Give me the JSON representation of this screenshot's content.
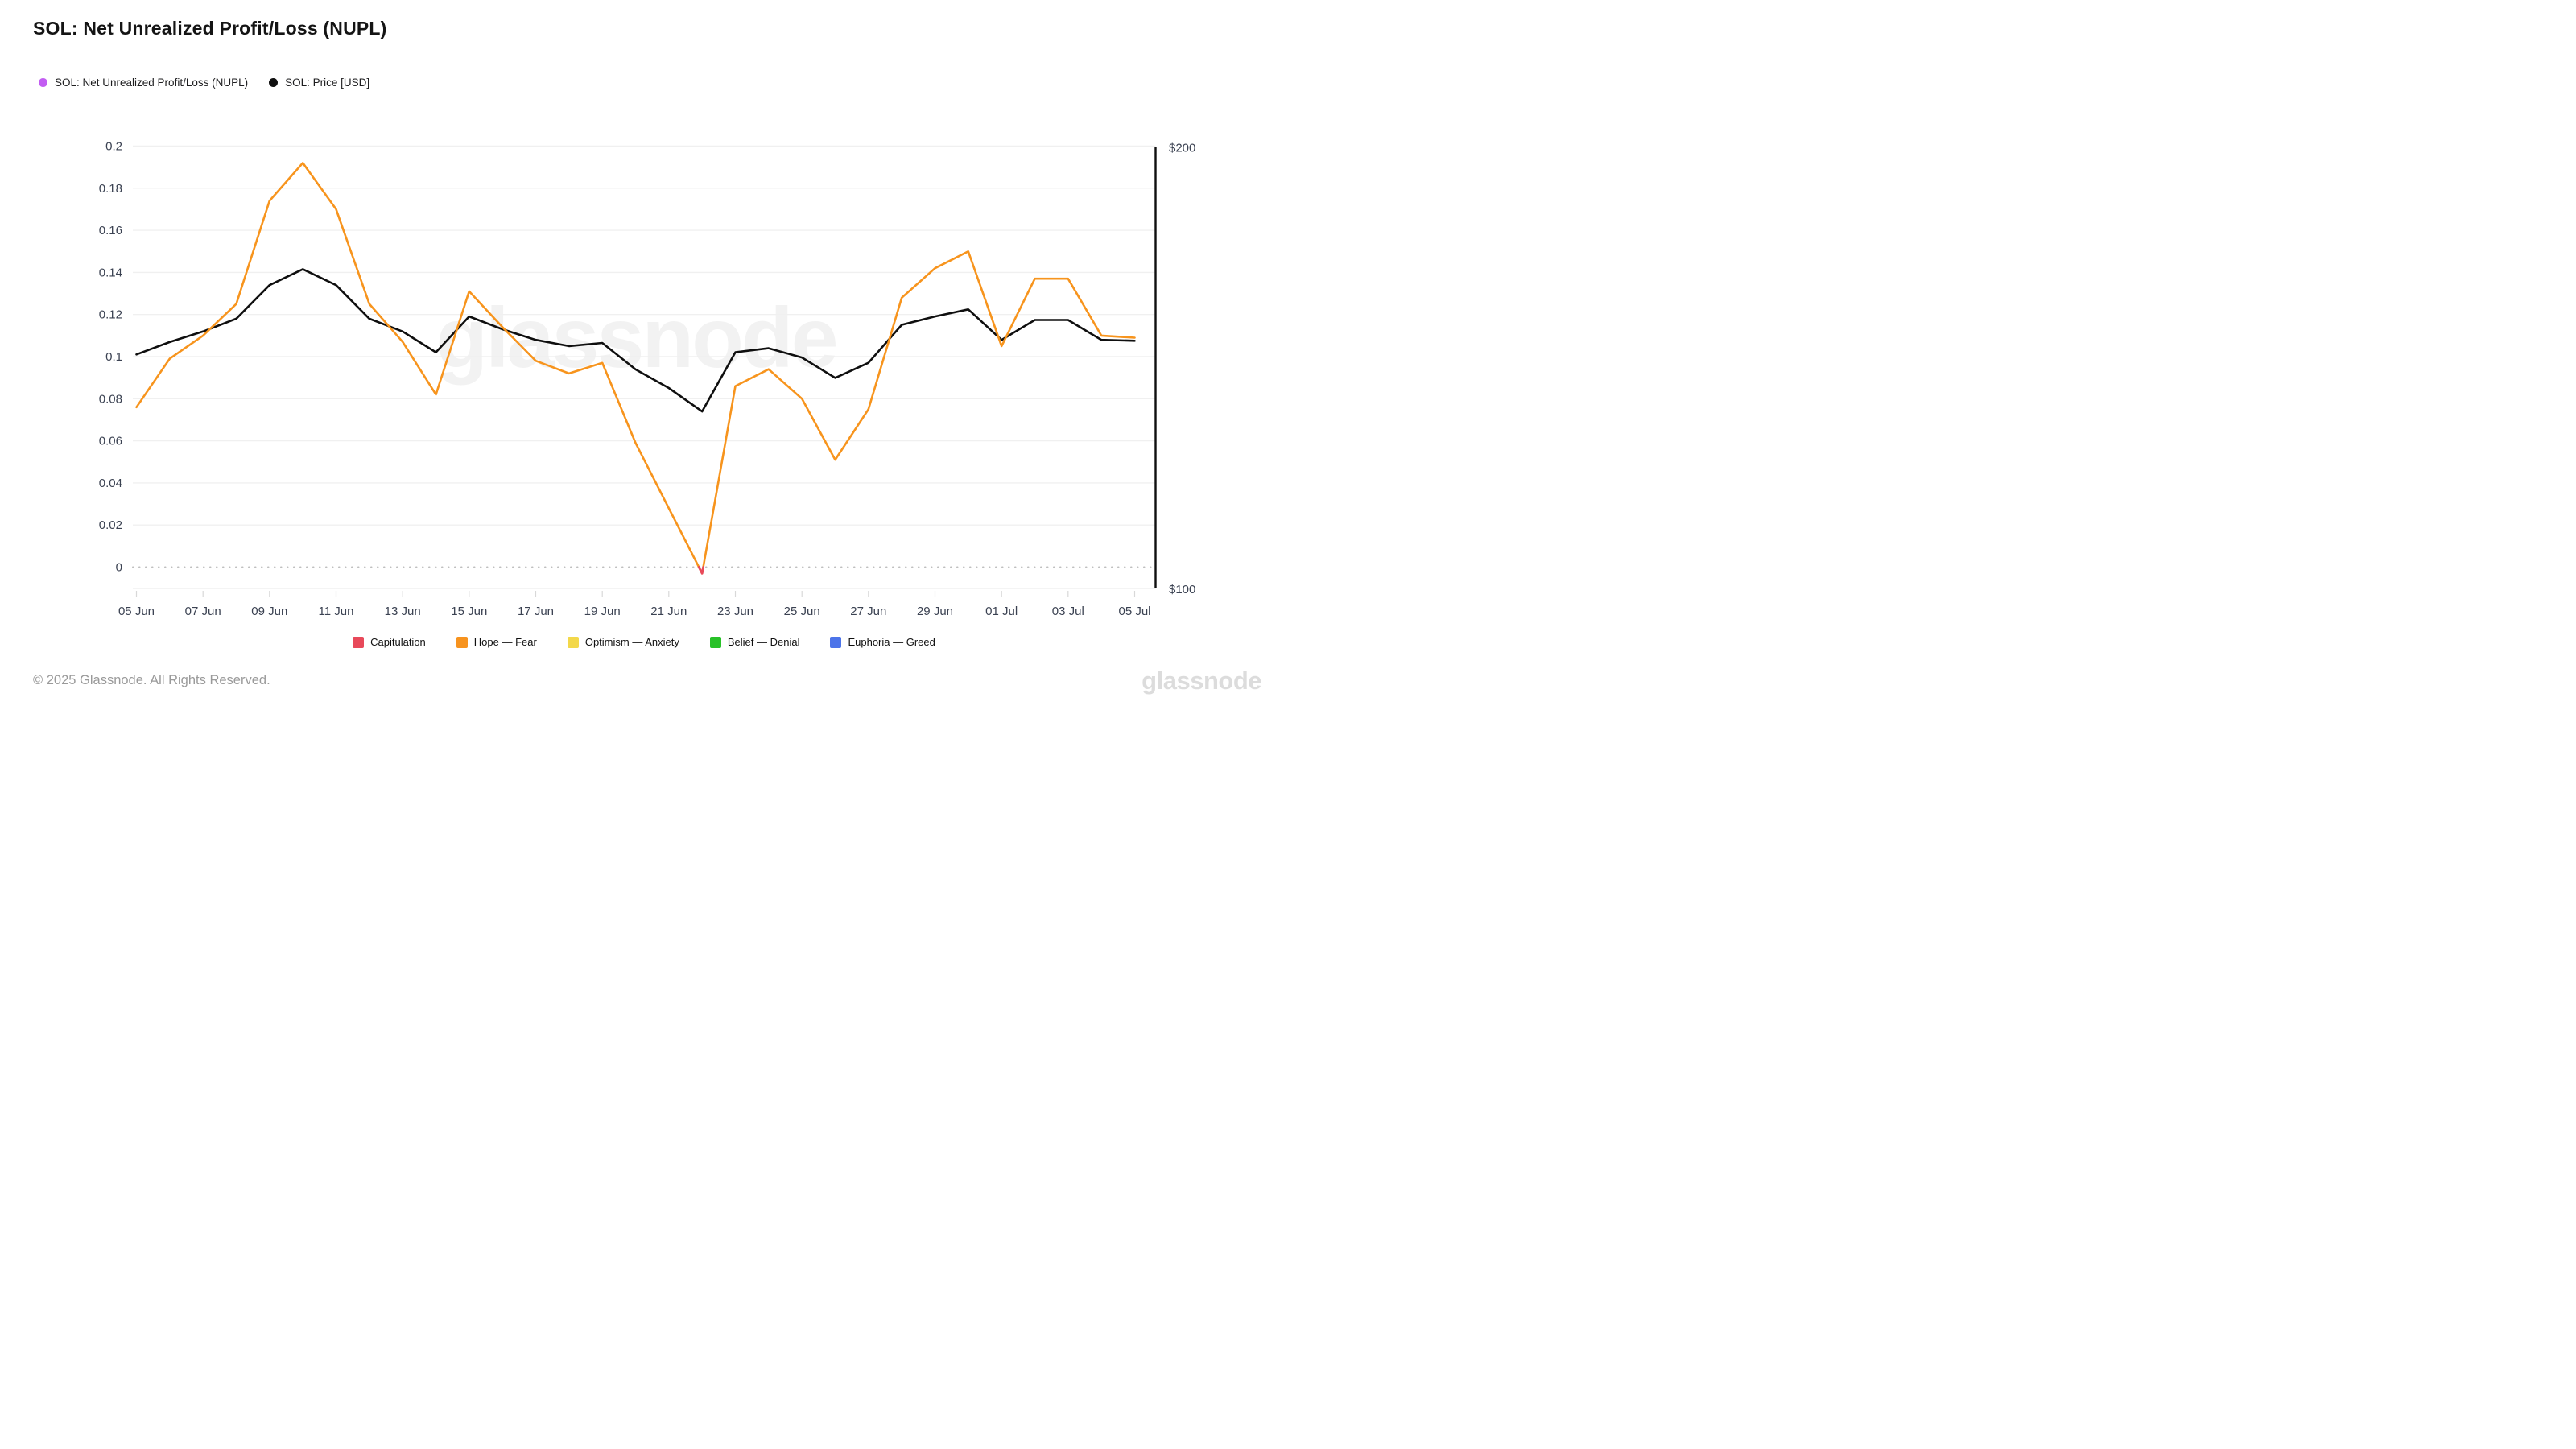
{
  "header": {
    "title": "SOL: Net Unrealized Profit/Loss (NUPL)"
  },
  "series_legend": [
    {
      "label": "SOL: Net Unrealized Profit/Loss (NUPL)",
      "color": "#c25df2"
    },
    {
      "label": "SOL: Price [USD]",
      "color": "#0f0f0f"
    }
  ],
  "watermark": "glassnode",
  "chart_data": {
    "type": "line",
    "title": "SOL: Net Unrealized Profit/Loss (NUPL)",
    "categories": [
      "05 Jun",
      "06 Jun",
      "07 Jun",
      "08 Jun",
      "09 Jun",
      "10 Jun",
      "11 Jun",
      "12 Jun",
      "13 Jun",
      "14 Jun",
      "15 Jun",
      "16 Jun",
      "17 Jun",
      "18 Jun",
      "19 Jun",
      "20 Jun",
      "21 Jun",
      "22 Jun",
      "23 Jun",
      "24 Jun",
      "25 Jun",
      "26 Jun",
      "27 Jun",
      "28 Jun",
      "29 Jun",
      "30 Jun",
      "01 Jul",
      "02 Jul",
      "03 Jul",
      "04 Jul",
      "05 Jul"
    ],
    "x_tick_label_step": 2,
    "series": [
      {
        "name": "SOL: Net Unrealized Profit/Loss (NUPL)",
        "axis": "left",
        "color": "#f7941d",
        "below_zero_color": "#e8495a",
        "values": [
          0.076,
          0.099,
          0.11,
          0.125,
          0.174,
          0.192,
          0.17,
          0.125,
          0.107,
          0.082,
          0.131,
          0.114,
          0.098,
          0.092,
          0.097,
          0.059,
          0.028,
          -0.003,
          0.086,
          0.094,
          0.08,
          0.051,
          0.075,
          0.128,
          0.142,
          0.15,
          0.105,
          0.137,
          0.137,
          0.11,
          0.109
        ]
      },
      {
        "name": "SOL: Price [USD]",
        "axis": "right",
        "color": "#0f0f0f",
        "values": [
          153.0,
          155.8,
          158.2,
          161.1,
          168.7,
          172.3,
          168.7,
          161.1,
          158.2,
          153.5,
          161.6,
          158.7,
          156.3,
          154.9,
          155.6,
          149.6,
          145.4,
          140.1,
          153.5,
          154.4,
          152.3,
          147.7,
          151.1,
          159.7,
          161.6,
          163.2,
          156.3,
          160.8,
          160.8,
          156.3,
          156.1
        ]
      }
    ],
    "left_axis": {
      "tick_labels": [
        "0",
        "0.02",
        "0.04",
        "0.06",
        "0.08",
        "0.1",
        "0.12",
        "0.14",
        "0.16",
        "0.18",
        "0.2"
      ],
      "range": [
        -0.012,
        0.2
      ],
      "zero_line": "dotted"
    },
    "right_axis": {
      "top_label": "$200",
      "bottom_label": "$100",
      "range": [
        100,
        200
      ]
    },
    "grid": "horizontal",
    "legend_position": "top-left"
  },
  "sentiment_legend": [
    {
      "label": "Capitulation",
      "color": "#e8495a"
    },
    {
      "label": "Hope — Fear",
      "color": "#f7931e"
    },
    {
      "label": "Optimism — Anxiety",
      "color": "#f3d84a"
    },
    {
      "label": "Belief — Denial",
      "color": "#28c128"
    },
    {
      "label": "Euphoria — Greed",
      "color": "#4c74e9"
    }
  ],
  "footer": {
    "copyright": "© 2025 Glassnode. All Rights Reserved.",
    "logo": "glassnode"
  }
}
